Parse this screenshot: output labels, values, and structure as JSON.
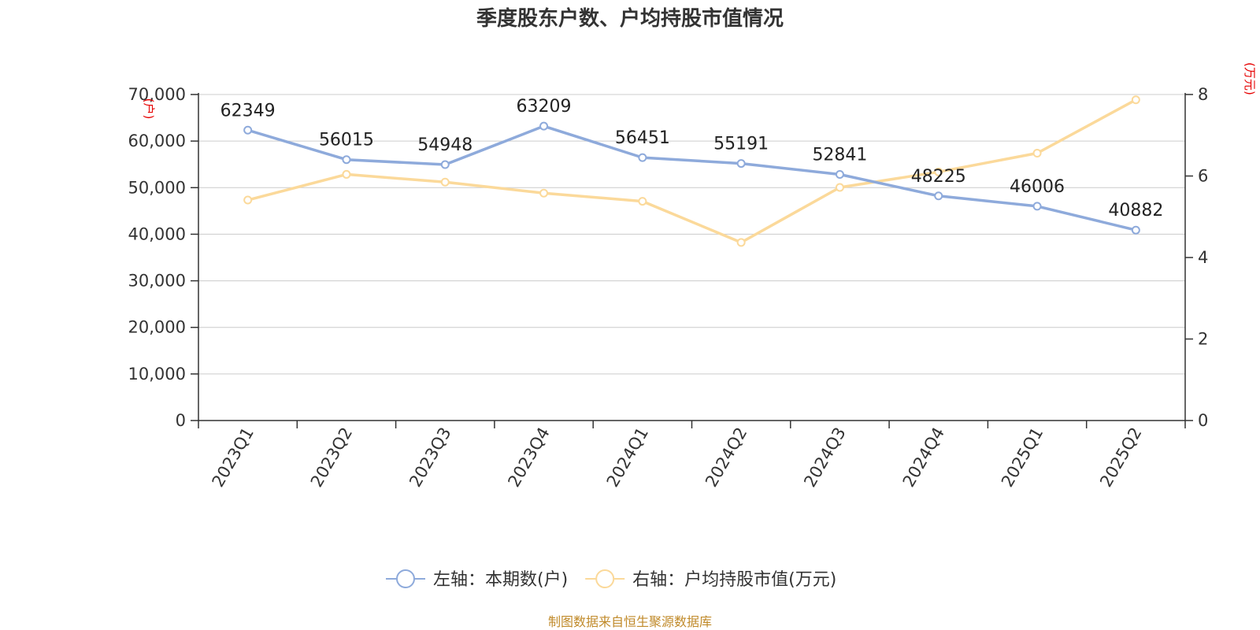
{
  "chart_data": {
    "type": "line",
    "title": "季度股东户数、户均持股市值情况",
    "categories": [
      "2023Q1",
      "2023Q2",
      "2023Q3",
      "2023Q4",
      "2024Q1",
      "2024Q2",
      "2024Q3",
      "2024Q4",
      "2025Q1",
      "2025Q2"
    ],
    "left_axis": {
      "unit": "(户)",
      "range": [
        0,
        70000
      ],
      "ticks": [
        0,
        10000,
        20000,
        30000,
        40000,
        50000,
        60000,
        70000
      ],
      "tick_labels": [
        "0",
        "10,000",
        "20,000",
        "30,000",
        "40,000",
        "50,000",
        "60,000",
        "70,000"
      ]
    },
    "right_axis": {
      "unit": "(万元)",
      "range": [
        0,
        8
      ],
      "ticks": [
        0,
        2,
        4,
        6,
        8
      ],
      "tick_labels": [
        "0",
        "2",
        "4",
        "6",
        "8"
      ]
    },
    "series": [
      {
        "name": "左轴：本期数(户)",
        "axis": "left",
        "color": "#8eaadb",
        "values": [
          62349,
          56015,
          54948,
          63209,
          56451,
          55191,
          52841,
          48225,
          46006,
          40882
        ],
        "labels": [
          "62349",
          "56015",
          "54948",
          "63209",
          "56451",
          "55191",
          "52841",
          "48225",
          "46006",
          "40882"
        ]
      },
      {
        "name": "右轴：户均持股市值(万元)",
        "axis": "right",
        "color": "#fbd99a",
        "values": [
          5.41,
          6.04,
          5.85,
          5.58,
          5.38,
          4.37,
          5.72,
          6.1,
          6.56,
          7.87
        ]
      }
    ],
    "grid": true,
    "legend_position": "bottom-center",
    "source": "制图数据来自恒生聚源数据库"
  }
}
